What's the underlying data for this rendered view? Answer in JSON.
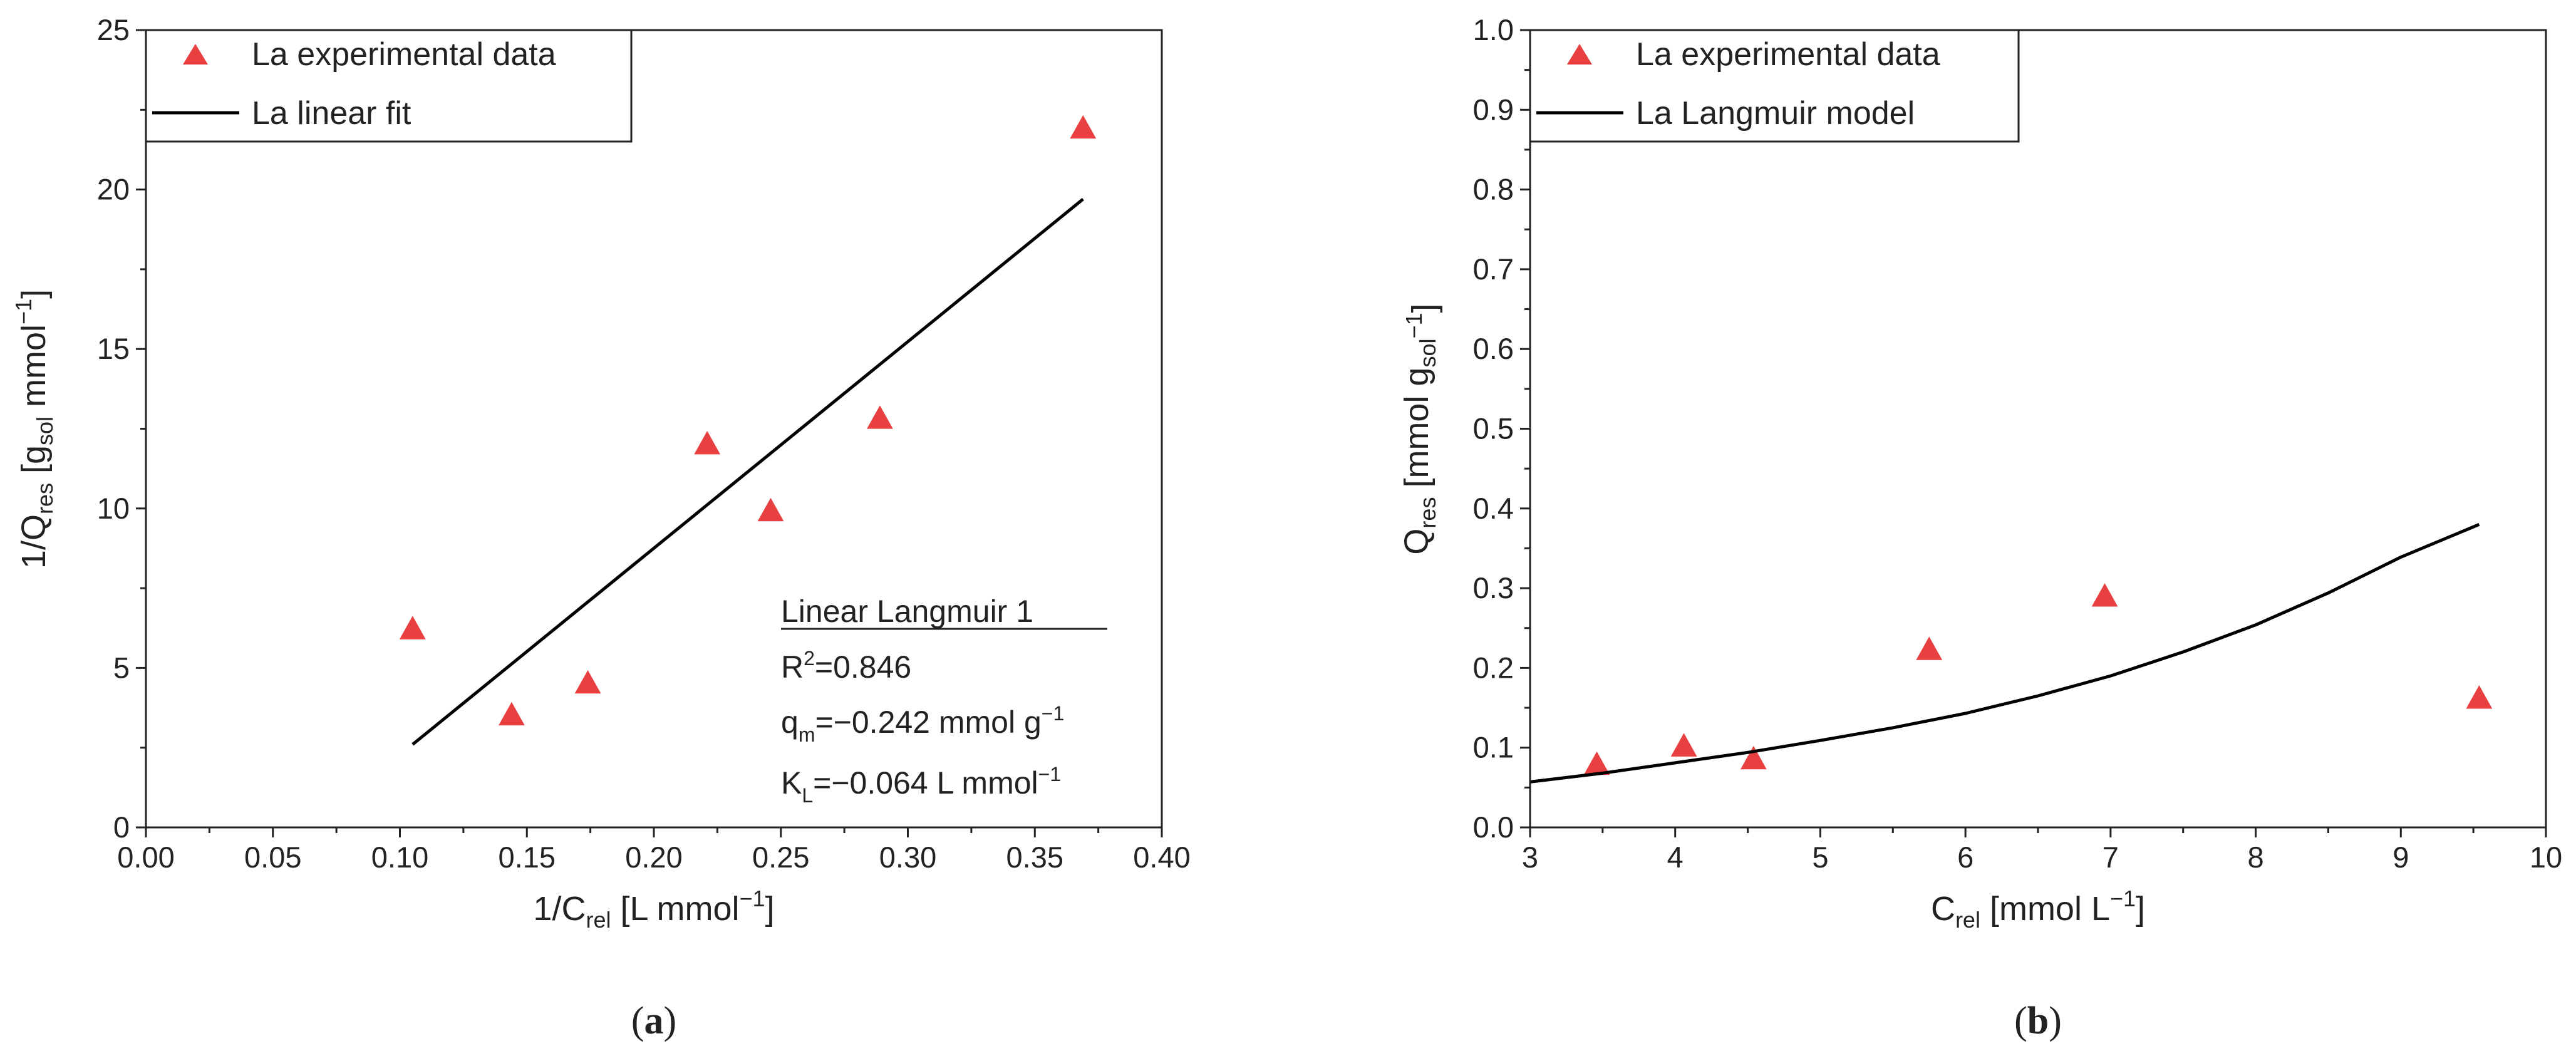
{
  "chart_data": [
    {
      "id": "a",
      "type": "scatter",
      "panel_label": {
        "open": "(",
        "letter": "a",
        "close": ")"
      },
      "xlim": [
        0.0,
        0.4
      ],
      "ylim": [
        0,
        25
      ],
      "xticks": [
        0.0,
        0.05,
        0.1,
        0.15,
        0.2,
        0.25,
        0.3,
        0.35,
        0.4
      ],
      "xtick_labels": [
        "0.00",
        "0.05",
        "0.10",
        "0.15",
        "0.20",
        "0.25",
        "0.30",
        "0.35",
        "0.40"
      ],
      "yticks": [
        0,
        5,
        10,
        15,
        20,
        25
      ],
      "ytick_labels": [
        "0",
        "5",
        "10",
        "15",
        "20",
        "25"
      ],
      "xlabel": {
        "prefix": "1/C",
        "sub": "rel",
        "suffix": " [L mmol",
        "sup": "−1",
        "end": "]"
      },
      "ylabel": {
        "prefix": "1/Q",
        "sub": "res",
        "mid": " [g",
        "sub2": "sol",
        "mid2": " mmol",
        "sup": "−1",
        "end": "]"
      },
      "series": [
        {
          "name": "La experimental data",
          "kind": "marker",
          "color": "#e84040",
          "x": [
            0.105,
            0.144,
            0.174,
            0.221,
            0.246,
            0.289,
            0.369
          ],
          "y": [
            6.2,
            3.5,
            4.5,
            12.0,
            9.9,
            12.8,
            21.9
          ]
        },
        {
          "name": "La linear fit",
          "kind": "line",
          "color": "#000000",
          "x": [
            0.105,
            0.369
          ],
          "y": [
            2.6,
            19.7
          ]
        }
      ],
      "legend": {
        "location": "top-left",
        "entries": [
          "La experimental data",
          "La linear fit"
        ]
      },
      "annotation": {
        "title": "Linear Langmuir 1",
        "r2": {
          "label": "R",
          "sup": "2",
          "value": "=0.846"
        },
        "qm": {
          "label": "q",
          "sub": "m",
          "value": "=−0.242 mmol g",
          "sup": "−1"
        },
        "kl": {
          "label": "K",
          "sub": "L",
          "value": "=−0.064 L mmol",
          "sup": "−1"
        }
      }
    },
    {
      "id": "b",
      "type": "scatter",
      "panel_label": {
        "open": "(",
        "letter": "b",
        "close": ")"
      },
      "xlim": [
        3,
        10
      ],
      "ylim": [
        0.0,
        1.0
      ],
      "xticks": [
        3,
        4,
        5,
        6,
        7,
        8,
        9,
        10
      ],
      "xtick_labels": [
        "3",
        "4",
        "5",
        "6",
        "7",
        "8",
        "9",
        "10"
      ],
      "yticks": [
        0.0,
        0.1,
        0.2,
        0.3,
        0.4,
        0.5,
        0.6,
        0.7,
        0.8,
        0.9,
        1.0
      ],
      "ytick_labels": [
        "0.0",
        "0.1",
        "0.2",
        "0.3",
        "0.4",
        "0.5",
        "0.6",
        "0.7",
        "0.8",
        "0.9",
        "1.0"
      ],
      "xlabel": {
        "prefix": "C",
        "sub": "rel",
        "suffix": " [mmol L",
        "sup": "−1",
        "end": "]"
      },
      "ylabel": {
        "prefix": "Q",
        "sub": "res",
        "mid": " [mmol g",
        "sub2": "sol",
        "mid2": "",
        "sup": "−1",
        "end": "]"
      },
      "series": [
        {
          "name": "La experimental data",
          "kind": "marker",
          "color": "#e84040",
          "x": [
            3.46,
            4.06,
            4.54,
            5.75,
            6.96,
            9.54
          ],
          "y": [
            0.078,
            0.101,
            0.085,
            0.222,
            0.289,
            0.161
          ]
        },
        {
          "name": "La Langmuir model",
          "kind": "line",
          "color": "#000000",
          "x": [
            3.0,
            3.5,
            4.0,
            4.5,
            5.0,
            5.5,
            6.0,
            6.5,
            7.0,
            7.5,
            8.0,
            8.5,
            9.0,
            9.54
          ],
          "y": [
            0.057,
            0.068,
            0.081,
            0.094,
            0.109,
            0.125,
            0.143,
            0.165,
            0.19,
            0.22,
            0.254,
            0.294,
            0.339,
            0.38
          ]
        }
      ],
      "legend": {
        "location": "top-left",
        "entries": [
          "La experimental data",
          "La Langmuir model"
        ]
      }
    }
  ]
}
